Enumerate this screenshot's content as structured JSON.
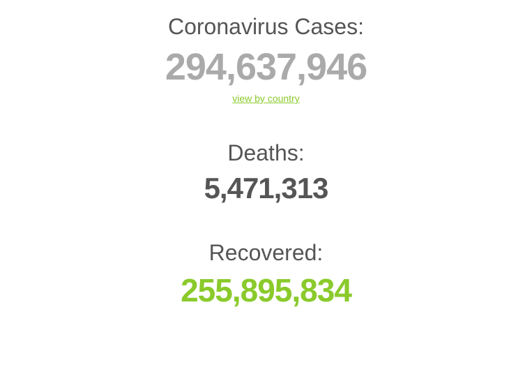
{
  "cases": {
    "label": "Coronavirus Cases:",
    "value": "294,637,946",
    "link_text": "view by country"
  },
  "deaths": {
    "label": "Deaths:",
    "value": "5,471,313"
  },
  "recovered": {
    "label": "Recovered:",
    "value": "255,895,834"
  },
  "colors": {
    "label_color": "#555555",
    "cases_value_color": "#aaaaaa",
    "deaths_value_color": "#555555",
    "recovered_value_color": "#8ACA2B",
    "link_color": "#8ACA2B",
    "background_color": "#ffffff"
  },
  "typography": {
    "label_fontsize": 32,
    "cases_value_fontsize": 54,
    "deaths_value_fontsize": 42,
    "recovered_value_fontsize": 46,
    "link_fontsize": 14,
    "font_family": "Arial"
  }
}
